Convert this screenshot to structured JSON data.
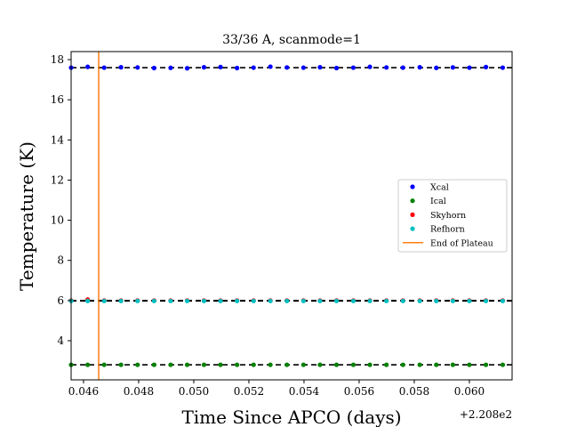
{
  "chart_data": {
    "type": "scatter",
    "title": "33/36 A, scanmode=1",
    "xlabel": "Time Since APCO (days)",
    "ylabel": "Temperature (K)",
    "x_offset_text": "+2.208e2",
    "xlim": [
      0.04555,
      0.06155
    ],
    "ylim": [
      2.05,
      18.4
    ],
    "x_ticks": [
      0.046,
      0.048,
      0.05,
      0.052,
      0.054,
      0.056,
      0.058,
      0.06
    ],
    "x_tick_labels": [
      "0.046",
      "0.048",
      "0.050",
      "0.052",
      "0.054",
      "0.056",
      "0.058",
      "0.060"
    ],
    "y_ticks": [
      4,
      6,
      8,
      10,
      12,
      14,
      16,
      18
    ],
    "y_tick_labels": [
      "4",
      "6",
      "8",
      "10",
      "12",
      "14",
      "16",
      "18"
    ],
    "x": [
      0.04555,
      0.04615,
      0.04675,
      0.04736,
      0.04796,
      0.04856,
      0.04916,
      0.04976,
      0.05037,
      0.05097,
      0.05157,
      0.05217,
      0.05278,
      0.05338,
      0.05398,
      0.05458,
      0.05518,
      0.05579,
      0.05639,
      0.05699,
      0.05759,
      0.0582,
      0.0588,
      0.0594,
      0.06,
      0.0606,
      0.06121
    ],
    "series": [
      {
        "name": "Xcal",
        "color": "#0000ff",
        "fit_level": 17.6,
        "y": [
          17.6,
          17.64,
          17.6,
          17.62,
          17.61,
          17.58,
          17.59,
          17.57,
          17.62,
          17.63,
          17.58,
          17.6,
          17.65,
          17.61,
          17.6,
          17.62,
          17.58,
          17.6,
          17.64,
          17.61,
          17.6,
          17.62,
          17.59,
          17.61,
          17.6,
          17.63,
          17.6
        ]
      },
      {
        "name": "Ical",
        "color": "#008000",
        "fit_level": 2.8,
        "y": [
          2.8,
          2.8,
          2.8,
          2.8,
          2.8,
          2.8,
          2.8,
          2.8,
          2.8,
          2.8,
          2.8,
          2.8,
          2.8,
          2.8,
          2.8,
          2.8,
          2.8,
          2.8,
          2.8,
          2.8,
          2.8,
          2.8,
          2.8,
          2.8,
          2.8,
          2.8,
          2.8
        ]
      },
      {
        "name": "Skyhorn",
        "color": "#ff0000",
        "fit_level": 6.0,
        "y": [
          6.0,
          6.05,
          6.0,
          6.0,
          6.0,
          6.0,
          6.0,
          6.0,
          6.0,
          6.0,
          6.0,
          6.0,
          6.0,
          6.0,
          6.0,
          6.0,
          6.0,
          6.0,
          6.0,
          6.0,
          6.0,
          6.0,
          6.0,
          6.0,
          6.0,
          6.0,
          6.0
        ]
      },
      {
        "name": "Refhorn",
        "color": "#00bfbf",
        "fit_level": 5.98,
        "y": [
          5.98,
          5.98,
          5.98,
          5.98,
          5.98,
          5.98,
          5.98,
          5.98,
          5.98,
          5.98,
          5.98,
          5.98,
          5.98,
          5.98,
          5.98,
          5.98,
          5.98,
          5.98,
          5.98,
          5.98,
          5.98,
          5.98,
          5.98,
          5.98,
          5.98,
          5.98,
          5.98
        ]
      }
    ],
    "vlines": [
      {
        "name": "End of Plateau",
        "x": 0.04655,
        "color": "#ff7f0e"
      }
    ],
    "fit_line_color": "#000000",
    "grid": false,
    "legend_position": "center-right"
  }
}
